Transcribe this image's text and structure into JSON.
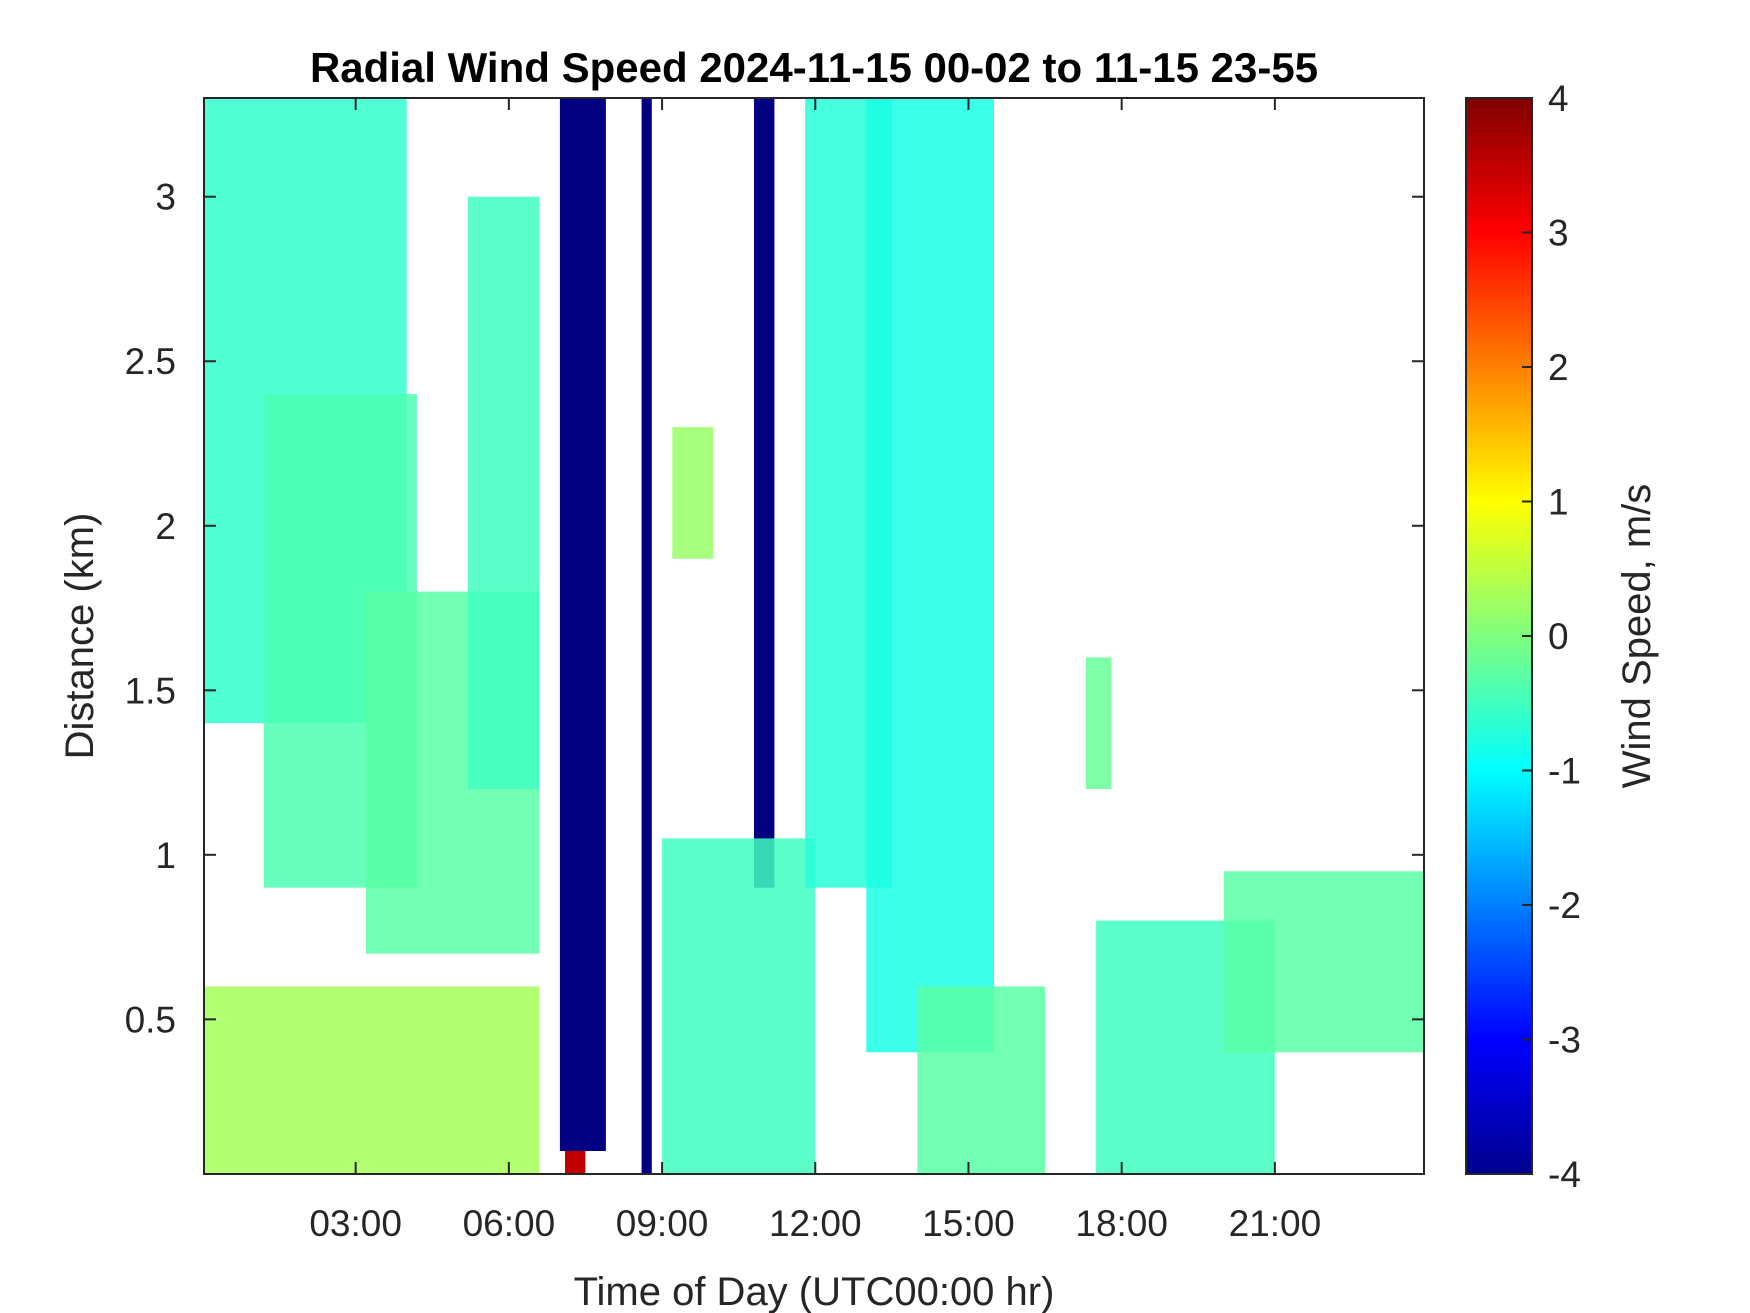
{
  "chart_data": {
    "type": "heatmap",
    "title": "Radial Wind Speed 2024-11-15 00-02 to 11-15 23-55",
    "xlabel": "Time of Day (UTC00:00 hr)",
    "ylabel": "Distance (km)",
    "colorbar_label": "Wind Speed, m/s",
    "colormap": "jet",
    "x_unit": "hours",
    "xlim": [
      0.03,
      23.92
    ],
    "ylim": [
      0.03,
      3.3
    ],
    "clim": [
      -4,
      4
    ],
    "x_ticks": [
      {
        "value": 3,
        "label": "03:00"
      },
      {
        "value": 6,
        "label": "06:00"
      },
      {
        "value": 9,
        "label": "09:00"
      },
      {
        "value": 12,
        "label": "12:00"
      },
      {
        "value": 15,
        "label": "15:00"
      },
      {
        "value": 18,
        "label": "18:00"
      },
      {
        "value": 21,
        "label": "21:00"
      }
    ],
    "y_ticks": [
      {
        "value": 0.5,
        "label": "0.5"
      },
      {
        "value": 1,
        "label": "1"
      },
      {
        "value": 1.5,
        "label": "1.5"
      },
      {
        "value": 2,
        "label": "2"
      },
      {
        "value": 2.5,
        "label": "2.5"
      },
      {
        "value": 3,
        "label": "3"
      }
    ],
    "colorbar_ticks": [
      {
        "value": 4,
        "label": "4"
      },
      {
        "value": 3,
        "label": "3"
      },
      {
        "value": 2,
        "label": "2"
      },
      {
        "value": 1,
        "label": "1"
      },
      {
        "value": 0,
        "label": "0"
      },
      {
        "value": -1,
        "label": "-1"
      },
      {
        "value": -2,
        "label": "-2"
      },
      {
        "value": -3,
        "label": "-3"
      },
      {
        "value": -4,
        "label": "-4"
      }
    ],
    "regions": [
      {
        "name": "early-morning-high-layer",
        "x": [
          0.03,
          4.0
        ],
        "y": [
          1.4,
          3.3
        ],
        "value": -0.6
      },
      {
        "name": "descending-band-a",
        "x": [
          1.2,
          4.2
        ],
        "y": [
          0.9,
          2.4
        ],
        "value": -0.4
      },
      {
        "name": "descending-band-b",
        "x": [
          3.2,
          6.6
        ],
        "y": [
          0.7,
          1.8
        ],
        "value": -0.3
      },
      {
        "name": "mid-morning-upper-layer",
        "x": [
          5.2,
          6.6
        ],
        "y": [
          1.2,
          3.0
        ],
        "value": -0.5
      },
      {
        "name": "night-boundary-layer",
        "x": [
          0.03,
          6.6
        ],
        "y": [
          0.03,
          0.6
        ],
        "value": 0.3
      },
      {
        "name": "low-level-strong-positive",
        "x": [
          7.1,
          7.5
        ],
        "y": [
          0.03,
          0.25
        ],
        "value": 3.5
      },
      {
        "name": "saturated-negative-column",
        "x": [
          7.0,
          7.9
        ],
        "y": [
          0.1,
          3.3
        ],
        "value": -4.0
      },
      {
        "name": "saturated-negative-column-b",
        "x": [
          8.6,
          8.8
        ],
        "y": [
          0.03,
          3.3
        ],
        "value": -4.0
      },
      {
        "name": "saturated-negative-column-c",
        "x": [
          10.8,
          11.2
        ],
        "y": [
          0.9,
          3.3
        ],
        "value": -4.0
      },
      {
        "name": "late-morning-lower-layer",
        "x": [
          9.0,
          12.0
        ],
        "y": [
          0.03,
          1.05
        ],
        "value": -0.5
      },
      {
        "name": "late-morning-patch",
        "x": [
          9.2,
          10.0
        ],
        "y": [
          1.9,
          2.3
        ],
        "value": 0.2
      },
      {
        "name": "midday-high-layer",
        "x": [
          11.8,
          13.5
        ],
        "y": [
          0.9,
          3.3
        ],
        "value": -0.7
      },
      {
        "name": "afternoon-descending-layer",
        "x": [
          13.0,
          15.5
        ],
        "y": [
          0.4,
          3.3
        ],
        "value": -0.8
      },
      {
        "name": "afternoon-boundary-layer",
        "x": [
          14.0,
          16.5
        ],
        "y": [
          0.03,
          0.6
        ],
        "value": -0.3
      },
      {
        "name": "evening-patch",
        "x": [
          17.3,
          17.8
        ],
        "y": [
          1.2,
          1.6
        ],
        "value": -0.2
      },
      {
        "name": "evening-boundary-layer",
        "x": [
          17.5,
          21.0
        ],
        "y": [
          0.03,
          0.8
        ],
        "value": -0.5
      },
      {
        "name": "night-elevated-layer",
        "x": [
          20.0,
          23.92
        ],
        "y": [
          0.4,
          0.95
        ],
        "value": -0.3
      }
    ]
  }
}
